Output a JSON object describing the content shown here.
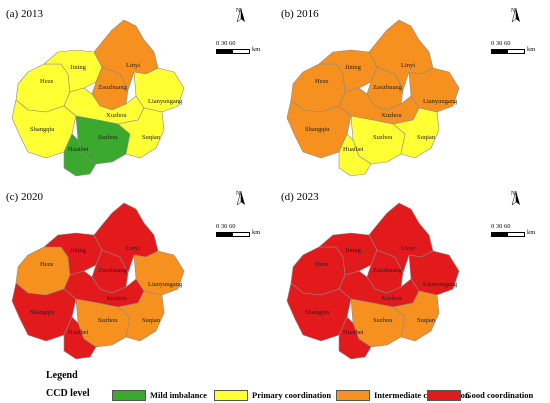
{
  "colors": {
    "mild": "#3aa92e",
    "primary": "#ffff33",
    "intermediate": "#f6901e",
    "good": "#e31a1c",
    "border": "#ffffff"
  },
  "map_common": {
    "north_label": "N",
    "scale_numbers": "0   30  60",
    "scale_unit": "km"
  },
  "panels": [
    {
      "title": "(a) 2013",
      "regions": {
        "heze": "primary",
        "jining": "primary",
        "linyi": "intermediate",
        "zaozhuang": "intermediate",
        "lianyungang": "primary",
        "xuzhou": "primary",
        "shangqiu": "primary",
        "suzhou": "mild",
        "huaibei": "mild",
        "suqian": "primary"
      }
    },
    {
      "title": "(b) 2016",
      "regions": {
        "heze": "intermediate",
        "jining": "intermediate",
        "linyi": "intermediate",
        "zaozhuang": "intermediate",
        "lianyungang": "intermediate",
        "xuzhou": "intermediate",
        "shangqiu": "intermediate",
        "suzhou": "primary",
        "huaibei": "primary",
        "suqian": "primary"
      }
    },
    {
      "title": "(c) 2020",
      "regions": {
        "heze": "intermediate",
        "jining": "good",
        "linyi": "good",
        "zaozhuang": "good",
        "lianyungang": "intermediate",
        "xuzhou": "good",
        "shangqiu": "good",
        "suzhou": "intermediate",
        "huaibei": "good",
        "suqian": "intermediate"
      }
    },
    {
      "title": "(d) 2023",
      "regions": {
        "heze": "good",
        "jining": "good",
        "linyi": "good",
        "zaozhuang": "good",
        "lianyungang": "good",
        "xuzhou": "good",
        "shangqiu": "good",
        "suzhou": "intermediate",
        "huaibei": "good",
        "suqian": "intermediate"
      }
    }
  ],
  "city_labels": {
    "heze": "Heze",
    "jining": "Jining",
    "linyi": "Linyi",
    "zaozhuang": "Zaozhuang",
    "lianyungang": "Lianyungang",
    "xuzhou": "Xuzhou",
    "shangqiu": "Shangqiu",
    "suzhou": "Suzhou",
    "huaibei": "Huaibei",
    "suqian": "Suqian"
  },
  "legend": {
    "title": "Legend",
    "subtitle": "CCD  level",
    "items": [
      {
        "key": "mild",
        "label": "Mild imbalance"
      },
      {
        "key": "primary",
        "label": "Primary coordination"
      },
      {
        "key": "intermediate",
        "label": "Intermediate coordination"
      },
      {
        "key": "good",
        "label": "Good coordination"
      }
    ]
  }
}
